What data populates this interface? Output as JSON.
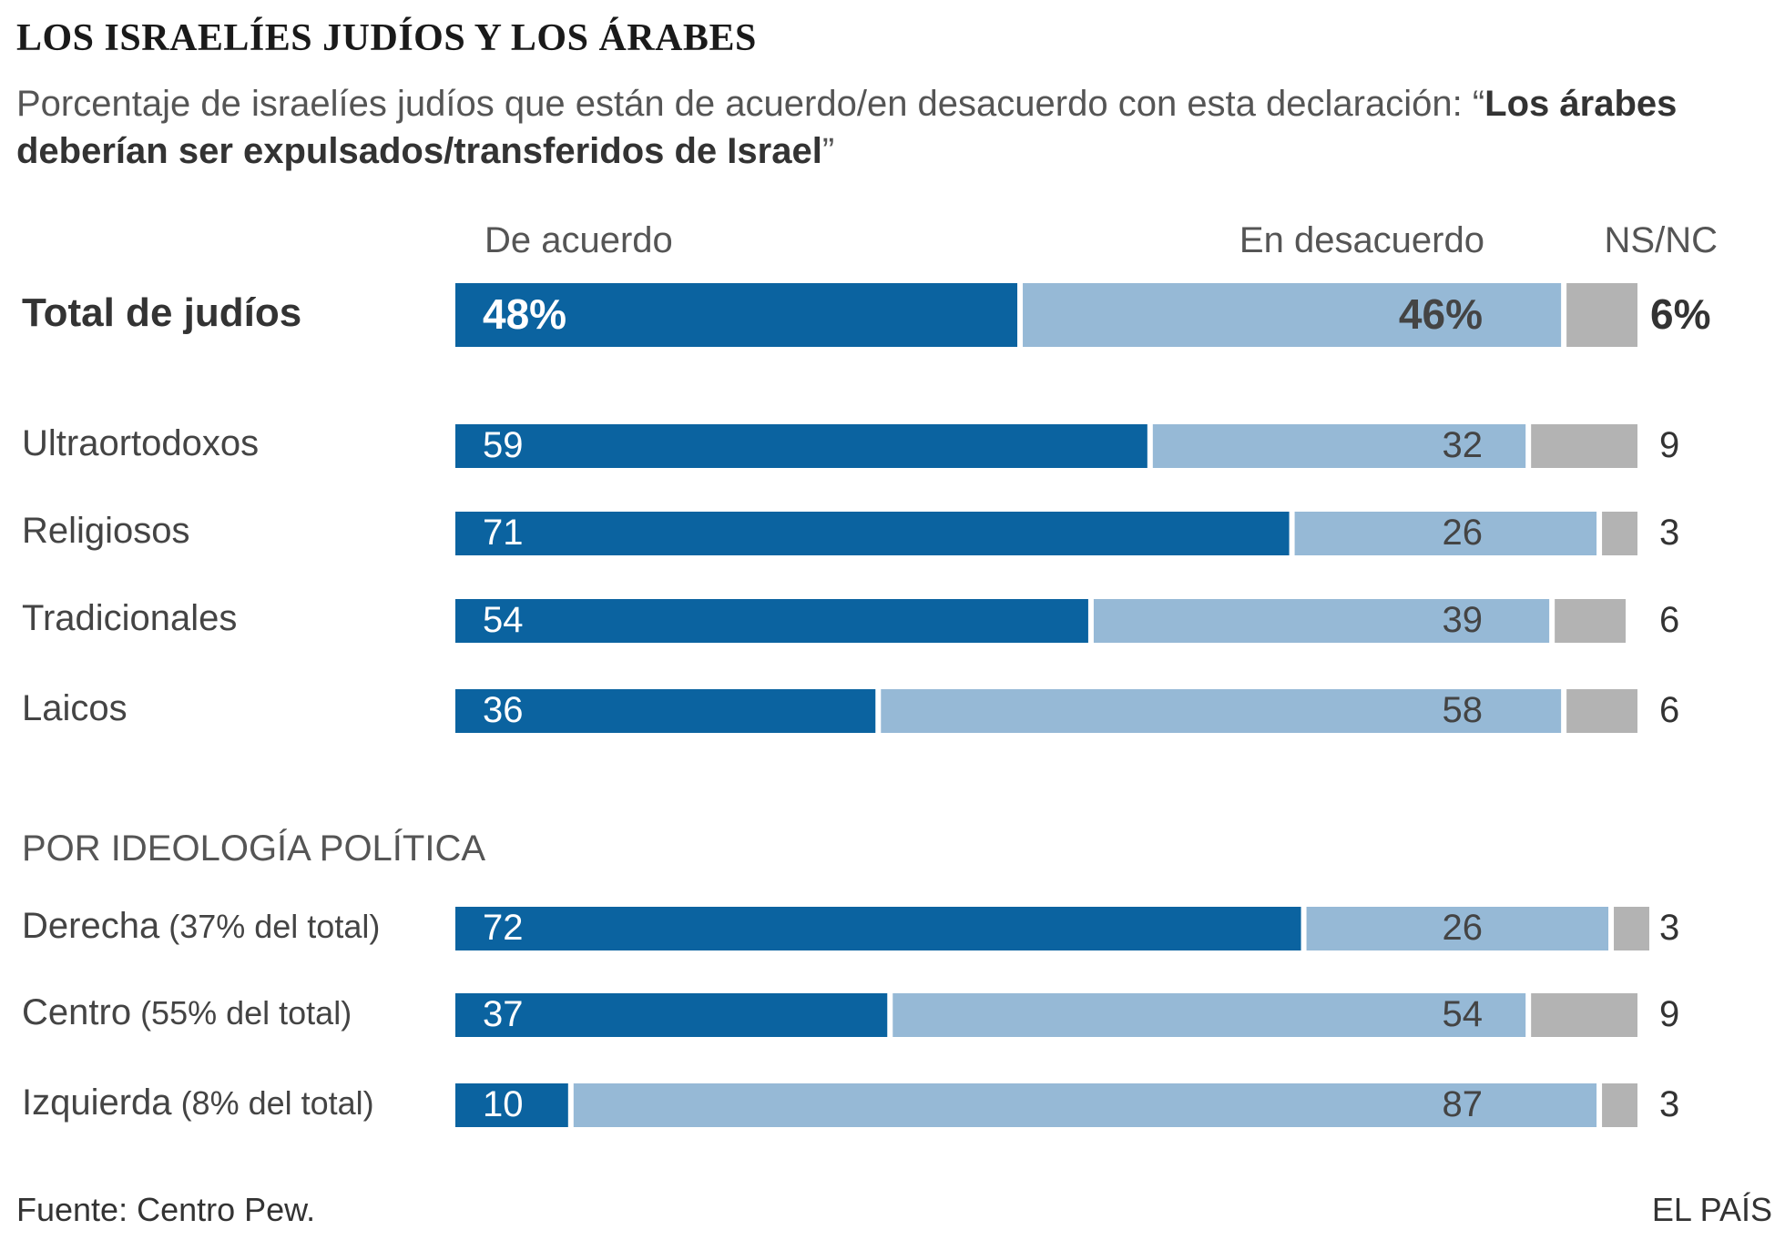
{
  "title": "LOS ISRAELÍES JUDÍOS Y LOS ÁRABES",
  "subtitle_plain": "Porcentaje de israelíes judíos que están de acuerdo/en desacuerdo con esta declaración: “",
  "subtitle_bold": "Los árabes deberían ser expulsados/transferidos de Israel",
  "subtitle_end": "”",
  "column_headers": {
    "agree": "De acuerdo",
    "disagree": "En desacuerdo",
    "nsnc": "NS/NC"
  },
  "section_title": "POR IDEOLOGÍA POLÍTICA",
  "footer": {
    "source": "Fuente: Centro Pew.",
    "brand": "EL PAÍS"
  },
  "colors": {
    "agree": "#0b63a0",
    "disagree": "#96b9d6",
    "nsnc": "#b3b3b3"
  },
  "chart_data": {
    "type": "bar",
    "orientation": "horizontal",
    "stacked": true,
    "title": "LOS ISRAELÍES JUDÍOS Y LOS ÁRABES",
    "series_names": [
      "De acuerdo",
      "En desacuerdo",
      "NS/NC"
    ],
    "rows": [
      {
        "label": "Total de judíos",
        "sublabel": "",
        "values": [
          48,
          46,
          6
        ],
        "labels": [
          "48%",
          "46%",
          "6%"
        ],
        "emphasis": true
      },
      {
        "label": "Ultraortodoxos",
        "sublabel": "",
        "values": [
          59,
          32,
          9
        ],
        "labels": [
          "59",
          "32",
          "9"
        ]
      },
      {
        "label": "Religiosos",
        "sublabel": "",
        "values": [
          71,
          26,
          3
        ],
        "labels": [
          "71",
          "26",
          "3"
        ]
      },
      {
        "label": "Tradicionales",
        "sublabel": "",
        "values": [
          54,
          39,
          6
        ],
        "labels": [
          "54",
          "39",
          "6"
        ]
      },
      {
        "label": "Laicos",
        "sublabel": "",
        "values": [
          36,
          58,
          6
        ],
        "labels": [
          "36",
          "58",
          "6"
        ]
      },
      {
        "label": "Derecha",
        "sublabel": "(37% del total)",
        "values": [
          72,
          26,
          3
        ],
        "labels": [
          "72",
          "26",
          "3"
        ]
      },
      {
        "label": "Centro",
        "sublabel": "(55% del total)",
        "values": [
          37,
          54,
          9
        ],
        "labels": [
          "37",
          "54",
          "9"
        ]
      },
      {
        "label": "Izquierda",
        "sublabel": "(8% del total)",
        "values": [
          10,
          87,
          3
        ],
        "labels": [
          "10",
          "87",
          "3"
        ]
      }
    ]
  }
}
